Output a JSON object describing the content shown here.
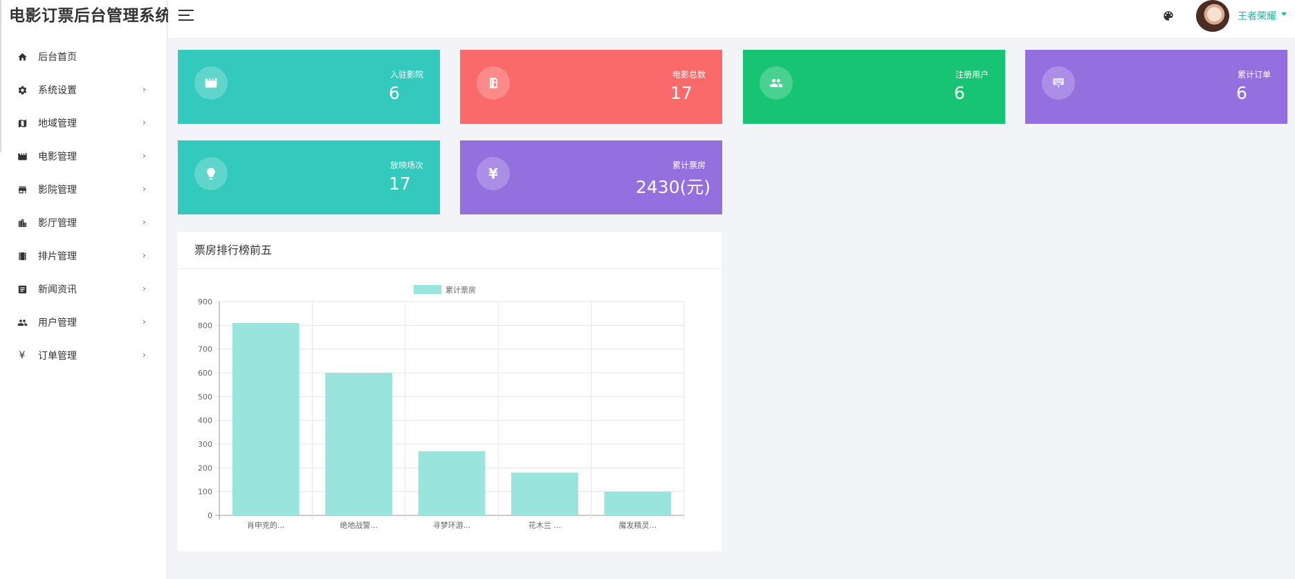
{
  "app": {
    "title": "电影订票后台管理系统"
  },
  "sidebar": {
    "items": [
      {
        "label": "后台首页",
        "icon": "home-icon",
        "has_children": false
      },
      {
        "label": "系统设置",
        "icon": "gear-icon",
        "has_children": true
      },
      {
        "label": "地域管理",
        "icon": "map-icon",
        "has_children": true
      },
      {
        "label": "电影管理",
        "icon": "film-icon",
        "has_children": true
      },
      {
        "label": "影院管理",
        "icon": "store-icon",
        "has_children": true
      },
      {
        "label": "影厅管理",
        "icon": "building-icon",
        "has_children": true
      },
      {
        "label": "排片管理",
        "icon": "filmstrip-icon",
        "has_children": true
      },
      {
        "label": "新闻资讯",
        "icon": "news-icon",
        "has_children": true
      },
      {
        "label": "用户管理",
        "icon": "users-icon",
        "has_children": true
      },
      {
        "label": "订单管理",
        "icon": "yen-icon",
        "has_children": true
      }
    ],
    "chevron": "›"
  },
  "header": {
    "user_name": "王者荣耀"
  },
  "stats": [
    {
      "title": "入驻影院",
      "value": "6",
      "icon": "clapperboard-icon",
      "color": "#33c9bd"
    },
    {
      "title": "电影总数",
      "value": "17",
      "icon": "film-reel-icon",
      "color": "#fa6a6a"
    },
    {
      "title": "注册用户",
      "value": "6",
      "icon": "users-icon",
      "color": "#16c473"
    },
    {
      "title": "累计订单",
      "value": "6",
      "icon": "keyboard-icon",
      "color": "#9470df"
    },
    {
      "title": "放映场次",
      "value": "17",
      "icon": "lightbulb-icon",
      "color": "#33c9bd"
    },
    {
      "title": "累计票房",
      "value": "2430(元)",
      "icon": "yen-icon",
      "color": "#9470df"
    }
  ],
  "ranking_panel": {
    "title": "票房排行榜前五"
  },
  "chart_data": {
    "type": "bar",
    "categories": [
      "肖申克的...",
      "绝地战警...",
      "寻梦环游...",
      "花木兰 ...",
      "魔发精灵..."
    ],
    "series": [
      {
        "name": "累计票房",
        "values": [
          810,
          600,
          270,
          180,
          100
        ],
        "color": "#99e4dd"
      }
    ],
    "ylim": [
      0,
      900
    ],
    "yticks": [
      0,
      100,
      200,
      300,
      400,
      500,
      600,
      700,
      800,
      900
    ],
    "grid": true,
    "legend": "top-center"
  }
}
